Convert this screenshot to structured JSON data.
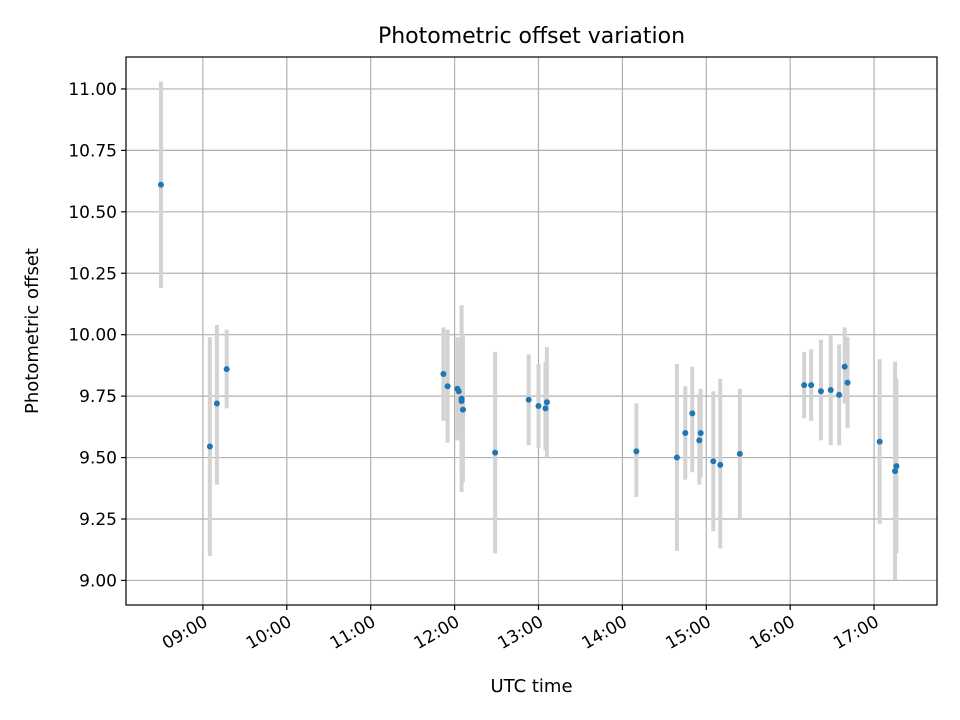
{
  "chart_data": {
    "type": "scatter",
    "title": "Photometric offset variation",
    "xlabel": "UTC time",
    "ylabel": "Photometric offset",
    "x_axis_kind": "time",
    "xlim": [
      "08:05",
      "17:45"
    ],
    "ylim": [
      8.9,
      11.13
    ],
    "grid": true,
    "x_ticks": [
      "09:00",
      "10:00",
      "11:00",
      "12:00",
      "13:00",
      "14:00",
      "15:00",
      "16:00",
      "17:00"
    ],
    "y_ticks": [
      "9.00",
      "9.25",
      "9.50",
      "9.75",
      "10.00",
      "10.25",
      "10.50",
      "10.75",
      "11.00"
    ],
    "point_color": "#1f77b4",
    "errorbar_color": "#d3d3d3",
    "series": [
      {
        "points": [
          {
            "x": "08:30",
            "y": 10.61,
            "lo": 10.19,
            "hi": 11.03
          },
          {
            "x": "09:05",
            "y": 9.545,
            "lo": 9.1,
            "hi": 9.99
          },
          {
            "x": "09:10",
            "y": 9.72,
            "lo": 9.39,
            "hi": 10.04
          },
          {
            "x": "09:17",
            "y": 9.86,
            "lo": 9.7,
            "hi": 10.02
          },
          {
            "x": "11:52",
            "y": 9.84,
            "lo": 9.65,
            "hi": 10.03
          },
          {
            "x": "11:55",
            "y": 9.79,
            "lo": 9.56,
            "hi": 10.02
          },
          {
            "x": "12:02",
            "y": 9.78,
            "lo": 9.57,
            "hi": 9.99
          },
          {
            "x": "12:03",
            "y": 9.77,
            "lo": 9.58,
            "hi": 9.97
          },
          {
            "x": "12:05",
            "y": 9.74,
            "lo": 9.36,
            "hi": 10.12
          },
          {
            "x": "12:05",
            "y": 9.73,
            "lo": 9.45,
            "hi": 10.07
          },
          {
            "x": "12:06",
            "y": 9.695,
            "lo": 9.4,
            "hi": 10.0
          },
          {
            "x": "12:29",
            "y": 9.52,
            "lo": 9.11,
            "hi": 9.93
          },
          {
            "x": "12:53",
            "y": 9.735,
            "lo": 9.55,
            "hi": 9.92
          },
          {
            "x": "13:00",
            "y": 9.71,
            "lo": 9.54,
            "hi": 9.88
          },
          {
            "x": "13:05",
            "y": 9.7,
            "lo": 9.53,
            "hi": 9.89
          },
          {
            "x": "13:06",
            "y": 9.725,
            "lo": 9.5,
            "hi": 9.95
          },
          {
            "x": "14:10",
            "y": 9.525,
            "lo": 9.34,
            "hi": 9.72
          },
          {
            "x": "14:39",
            "y": 9.5,
            "lo": 9.12,
            "hi": 9.88
          },
          {
            "x": "14:45",
            "y": 9.6,
            "lo": 9.41,
            "hi": 9.79
          },
          {
            "x": "14:50",
            "y": 9.68,
            "lo": 9.44,
            "hi": 9.87
          },
          {
            "x": "14:55",
            "y": 9.57,
            "lo": 9.39,
            "hi": 9.76
          },
          {
            "x": "14:56",
            "y": 9.6,
            "lo": 9.42,
            "hi": 9.78
          },
          {
            "x": "15:05",
            "y": 9.485,
            "lo": 9.2,
            "hi": 9.77
          },
          {
            "x": "15:10",
            "y": 9.47,
            "lo": 9.13,
            "hi": 9.82
          },
          {
            "x": "15:24",
            "y": 9.515,
            "lo": 9.25,
            "hi": 9.78
          },
          {
            "x": "16:10",
            "y": 9.795,
            "lo": 9.66,
            "hi": 9.93
          },
          {
            "x": "16:15",
            "y": 9.795,
            "lo": 9.65,
            "hi": 9.94
          },
          {
            "x": "16:22",
            "y": 9.77,
            "lo": 9.57,
            "hi": 9.98
          },
          {
            "x": "16:29",
            "y": 9.775,
            "lo": 9.55,
            "hi": 10.0
          },
          {
            "x": "16:35",
            "y": 9.755,
            "lo": 9.55,
            "hi": 9.96
          },
          {
            "x": "16:39",
            "y": 9.87,
            "lo": 9.72,
            "hi": 10.03
          },
          {
            "x": "16:41",
            "y": 9.805,
            "lo": 9.62,
            "hi": 9.99
          },
          {
            "x": "17:04",
            "y": 9.565,
            "lo": 9.23,
            "hi": 9.9
          },
          {
            "x": "17:15",
            "y": 9.445,
            "lo": 9.0,
            "hi": 9.89
          },
          {
            "x": "17:16",
            "y": 9.465,
            "lo": 9.11,
            "hi": 9.82
          }
        ]
      }
    ]
  }
}
